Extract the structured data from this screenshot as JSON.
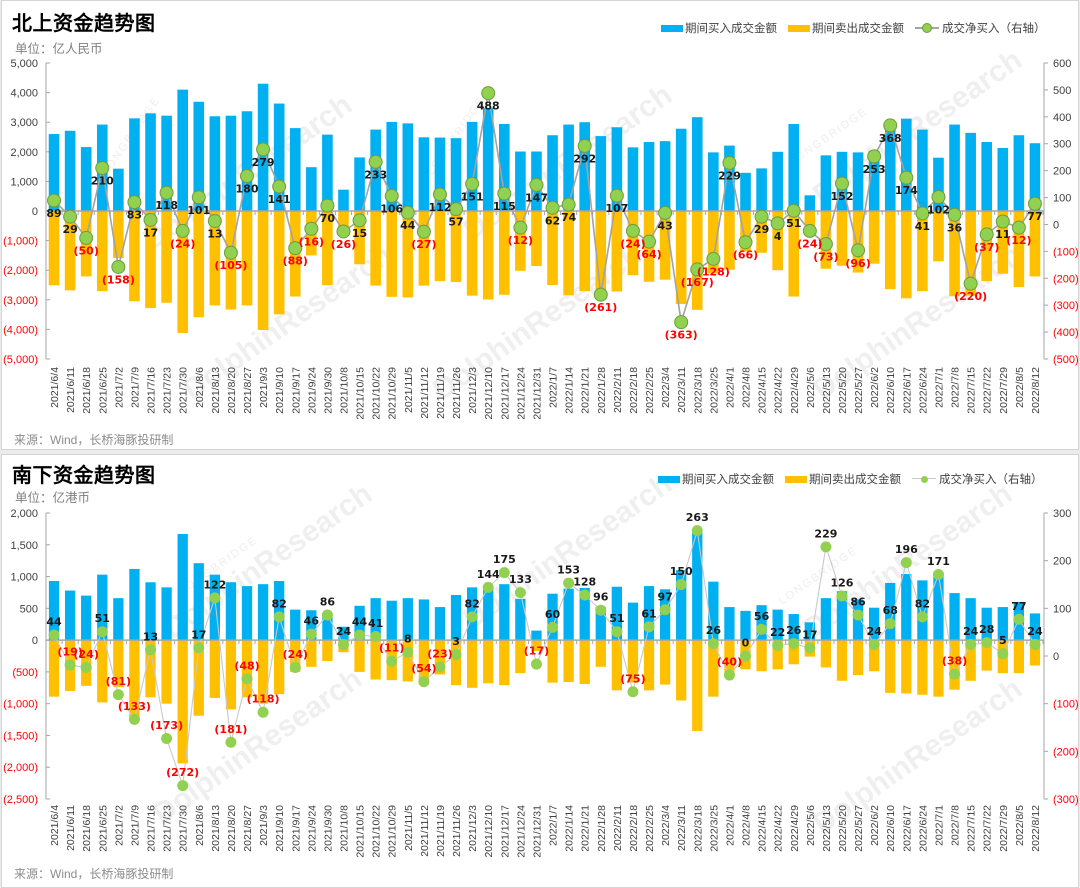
{
  "page": {
    "watermark_brand": "LONGBRIDGE",
    "watermark_text": "DolphinResearch"
  },
  "label_colors": {
    "positive": "#1a1a1a",
    "negative": "#FF0000",
    "axis_positive": "#404040"
  },
  "chart_data": [
    {
      "type": "bar",
      "combo": "bar+line",
      "title": "北上资金趋势图",
      "unit": "单位：亿人民币",
      "source": "来源：Wind，长桥海豚投研制",
      "xlabel": "",
      "ylabel": "",
      "legend": "top-right",
      "grid": false,
      "data_label_position": "below",
      "categories": [
        "2021/6/4",
        "2021/6/11",
        "2021/6/18",
        "2021/6/25",
        "2021/7/2",
        "2021/7/9",
        "2021/7/16",
        "2021/7/23",
        "2021/7/30",
        "2021/8/6",
        "2021/8/13",
        "2021/8/20",
        "2021/8/27",
        "2021/9/3",
        "2021/9/10",
        "2021/9/17",
        "2021/9/24",
        "2021/9/30",
        "2021/10/8",
        "2021/10/15",
        "2021/10/22",
        "2021/10/29",
        "2021/11/5",
        "2021/11/12",
        "2021/11/19",
        "2021/11/26",
        "2021/12/3",
        "2021/12/10",
        "2021/12/17",
        "2021/12/24",
        "2021/12/31",
        "2022/1/7",
        "2022/1/14",
        "2022/1/21",
        "2022/1/28",
        "2022/2/11",
        "2022/2/18",
        "2022/2/25",
        "2022/3/4",
        "2022/3/11",
        "2022/3/18",
        "2022/3/25",
        "2022/4/1",
        "2022/4/8",
        "2022/4/15",
        "2022/4/22",
        "2022/4/29",
        "2022/5/6",
        "2022/5/13",
        "2022/5/20",
        "2022/5/27",
        "2022/6/2",
        "2022/6/10",
        "2022/6/17",
        "2022/6/24",
        "2022/7/1",
        "2022/7/8",
        "2022/7/15",
        "2022/7/22",
        "2022/7/29",
        "2022/8/5",
        "2022/8/12"
      ],
      "series": [
        {
          "name": "期间买入成交金额",
          "type": "bar",
          "axis": "left",
          "color": "#00B0F0",
          "values": [
            2600,
            2710,
            2160,
            2920,
            1430,
            3130,
            3300,
            3220,
            4100,
            3690,
            3200,
            3220,
            3370,
            4300,
            3630,
            2800,
            1480,
            2580,
            720,
            1810,
            2750,
            3010,
            2960,
            2490,
            2480,
            2460,
            3010,
            3480,
            2940,
            2010,
            2010,
            2560,
            2920,
            3000,
            2530,
            2830,
            2150,
            2330,
            2360,
            2780,
            3170,
            1980,
            2210,
            1290,
            1440,
            2000,
            2940,
            530,
            1880,
            2000,
            1980,
            2030,
            3010,
            3120,
            2750,
            1800,
            2920,
            2640,
            2330,
            2130,
            2560,
            2290
          ]
        },
        {
          "name": "期间卖出成交金额",
          "type": "bar",
          "axis": "left",
          "color": "#FFC000",
          "values": [
            -2510,
            -2680,
            -2210,
            -2710,
            -1590,
            -3050,
            -3280,
            -3100,
            -4120,
            -3590,
            -3190,
            -3330,
            -3190,
            -4020,
            -3490,
            -2890,
            -1500,
            -2510,
            -750,
            -1800,
            -2520,
            -2900,
            -2920,
            -2520,
            -2370,
            -2400,
            -2860,
            -2990,
            -2830,
            -2020,
            -1860,
            -2500,
            -2850,
            -2710,
            -2790,
            -2720,
            -2170,
            -2390,
            -2320,
            -3140,
            -3340,
            -2110,
            -1980,
            -1360,
            -1410,
            -2000,
            -2890,
            -550,
            -1950,
            -1850,
            -2080,
            -1780,
            -2640,
            -2950,
            -2710,
            -1700,
            -2880,
            -2860,
            -2370,
            -2120,
            -2570,
            -2210
          ]
        },
        {
          "name": "成交净买入（右轴）",
          "type": "line",
          "axis": "right",
          "color": "#92D050",
          "data_labels": true,
          "values": [
            89,
            29,
            -50,
            210,
            -158,
            83,
            17,
            118,
            -24,
            101,
            13,
            -105,
            180,
            279,
            141,
            -88,
            -16,
            70,
            -26,
            15,
            233,
            106,
            44,
            -27,
            112,
            57,
            151,
            488,
            115,
            -12,
            147,
            62,
            74,
            292,
            -261,
            107,
            -24,
            -64,
            43,
            -363,
            -167,
            -128,
            229,
            -66,
            29,
            4,
            51,
            -24,
            -73,
            152,
            -96,
            253,
            368,
            174,
            41,
            102,
            36,
            -220,
            -37,
            11,
            -12,
            77
          ]
        }
      ],
      "y_left": {
        "range": [
          -5000,
          5000
        ],
        "ticks": [
          5000,
          4000,
          3000,
          2000,
          1000,
          0,
          -1000,
          -2000,
          -3000,
          -4000,
          -5000
        ],
        "tick_labels": [
          "5,000",
          "4,000",
          "3,000",
          "2,000",
          "1,000",
          "0",
          "(1,000)",
          "(2,000)",
          "(3,000)",
          "(4,000)",
          "(5,000)"
        ]
      },
      "y_right": {
        "range": [
          -500,
          600
        ],
        "ticks": [
          600,
          500,
          400,
          300,
          200,
          100,
          0,
          -100,
          -200,
          -300,
          -400,
          -500
        ],
        "tick_labels": [
          "600",
          "500",
          "400",
          "300",
          "200",
          "100",
          "0",
          "(100)",
          "(200)",
          "(300)",
          "(400)",
          "(500)"
        ]
      }
    },
    {
      "type": "bar",
      "combo": "bar+line",
      "title": "南下资金趋势图",
      "unit": "单位：亿港币",
      "source": "来源：Wind，长桥海豚投研制",
      "xlabel": "",
      "ylabel": "",
      "legend": "top-right",
      "grid": false,
      "data_label_position": "above",
      "categories": [
        "2021/6/4",
        "2021/6/11",
        "2021/6/18",
        "2021/6/25",
        "2021/7/2",
        "2021/7/9",
        "2021/7/16",
        "2021/7/23",
        "2021/7/30",
        "2021/8/6",
        "2021/8/13",
        "2021/8/20",
        "2021/8/27",
        "2021/9/3",
        "2021/9/10",
        "2021/9/17",
        "2021/9/24",
        "2021/9/30",
        "2021/10/8",
        "2021/10/15",
        "2021/10/22",
        "2021/10/29",
        "2021/11/5",
        "2021/11/12",
        "2021/11/19",
        "2021/11/26",
        "2021/12/3",
        "2021/12/10",
        "2021/12/17",
        "2021/12/24",
        "2021/12/31",
        "2022/1/7",
        "2022/1/14",
        "2022/1/21",
        "2022/1/28",
        "2022/2/11",
        "2022/2/18",
        "2022/2/25",
        "2022/3/4",
        "2022/3/11",
        "2022/3/18",
        "2022/3/25",
        "2022/4/1",
        "2022/4/8",
        "2022/4/15",
        "2022/4/22",
        "2022/4/29",
        "2022/5/6",
        "2022/5/13",
        "2022/5/20",
        "2022/5/27",
        "2022/6/2",
        "2022/6/10",
        "2022/6/17",
        "2022/6/24",
        "2022/7/1",
        "2022/7/8",
        "2022/7/15",
        "2022/7/22",
        "2022/7/29",
        "2022/8/5",
        "2022/8/12"
      ],
      "series": [
        {
          "name": "期间买入成交金额",
          "type": "bar",
          "axis": "left",
          "color": "#00B0F0",
          "values": [
            930,
            780,
            700,
            1030,
            660,
            1120,
            910,
            830,
            1670,
            1210,
            1030,
            910,
            850,
            880,
            930,
            480,
            470,
            420,
            210,
            540,
            660,
            620,
            660,
            640,
            520,
            710,
            830,
            820,
            880,
            650,
            150,
            730,
            810,
            820,
            520,
            840,
            590,
            850,
            800,
            1100,
            1690,
            920,
            520,
            460,
            550,
            480,
            410,
            280,
            660,
            770,
            640,
            510,
            900,
            1040,
            940,
            1060,
            740,
            660,
            510,
            520,
            600,
            420
          ]
        },
        {
          "name": "期间卖出成交金额",
          "type": "bar",
          "axis": "left",
          "color": "#FFC000",
          "values": [
            -890,
            -800,
            -720,
            -980,
            -740,
            -1250,
            -900,
            -1000,
            -1940,
            -1190,
            -910,
            -1090,
            -900,
            -1000,
            -850,
            -500,
            -420,
            -330,
            -190,
            -500,
            -620,
            -630,
            -650,
            -690,
            -540,
            -710,
            -750,
            -680,
            -710,
            -520,
            -170,
            -670,
            -660,
            -690,
            -420,
            -790,
            -670,
            -790,
            -700,
            -950,
            -1430,
            -890,
            -560,
            -460,
            -490,
            -460,
            -380,
            -260,
            -430,
            -640,
            -550,
            -490,
            -830,
            -840,
            -860,
            -890,
            -780,
            -640,
            -480,
            -520,
            -520,
            -400
          ]
        },
        {
          "name": "成交净买入（右轴）",
          "type": "line",
          "axis": "right",
          "color": "#92D050",
          "data_labels": true,
          "values": [
            44,
            -19,
            -24,
            51,
            -81,
            -133,
            13,
            -173,
            -272,
            17,
            122,
            -181,
            -48,
            -118,
            82,
            -24,
            46,
            86,
            24,
            44,
            41,
            -11,
            8,
            -54,
            -23,
            3,
            82,
            144,
            175,
            133,
            -17,
            60,
            153,
            128,
            96,
            51,
            -75,
            61,
            97,
            150,
            263,
            26,
            -40,
            0,
            56,
            22,
            26,
            17,
            229,
            126,
            86,
            24,
            68,
            196,
            82,
            171,
            -38,
            24,
            28,
            5,
            77,
            24
          ]
        }
      ],
      "y_left": {
        "range": [
          -2500,
          2000
        ],
        "ticks": [
          2000,
          1500,
          1000,
          500,
          0,
          -500,
          -1000,
          -1500,
          -2000,
          -2500
        ],
        "tick_labels": [
          "2,000",
          "1,500",
          "1,000",
          "500",
          "0",
          "(500)",
          "(1,000)",
          "(1,500)",
          "(2,000)",
          "(2,500)"
        ]
      },
      "y_right": {
        "range": [
          -300,
          300
        ],
        "ticks": [
          300,
          200,
          100,
          0,
          -100,
          -200,
          -300
        ],
        "tick_labels": [
          "300",
          "200",
          "100",
          "0",
          "(100)",
          "(200)",
          "(300)"
        ]
      }
    }
  ]
}
